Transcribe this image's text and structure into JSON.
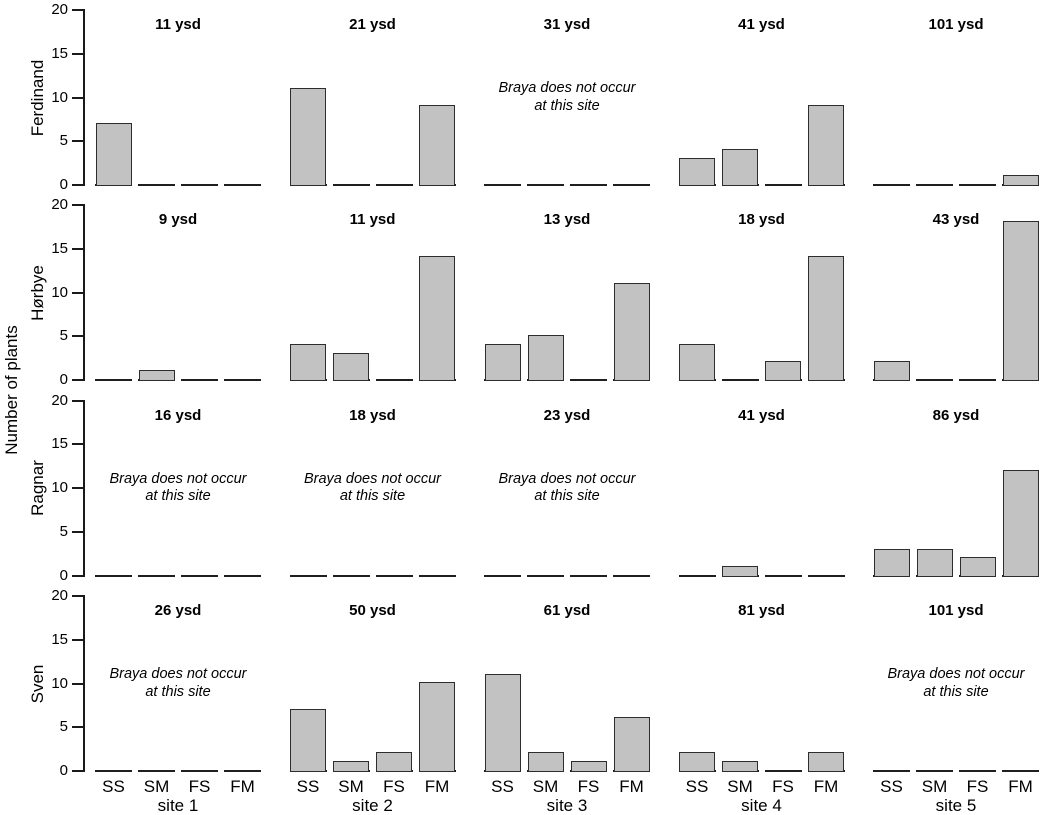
{
  "chart_data": {
    "type": "bar",
    "ylabel": "Number of plants",
    "ylim": [
      0,
      20
    ],
    "yticks": [
      0,
      5,
      10,
      15,
      20
    ],
    "categories": [
      "SS",
      "SM",
      "FS",
      "FM"
    ],
    "site_labels": [
      "site 1",
      "site 2",
      "site 3",
      "site 4",
      "site 5"
    ],
    "absent_note_lines": [
      "Braya does not occur",
      "at this site"
    ],
    "bar_fill": "#c2c2c2",
    "bar_stroke": "#2d2d2d",
    "rows": [
      {
        "label": "Ferdinand",
        "panels": [
          {
            "age_label": "11 ysd",
            "absent": false,
            "values": [
              7,
              0,
              0,
              0
            ]
          },
          {
            "age_label": "21 ysd",
            "absent": false,
            "values": [
              11,
              0,
              0,
              9
            ]
          },
          {
            "age_label": "31 ysd",
            "absent": true,
            "values": [
              0,
              0,
              0,
              0
            ]
          },
          {
            "age_label": "41 ysd",
            "absent": false,
            "values": [
              3,
              4,
              0,
              9
            ]
          },
          {
            "age_label": "101 ysd",
            "absent": false,
            "values": [
              0,
              0,
              0,
              1
            ]
          }
        ]
      },
      {
        "label": "Hørbye",
        "panels": [
          {
            "age_label": "9 ysd",
            "absent": false,
            "values": [
              0,
              1,
              0,
              0
            ]
          },
          {
            "age_label": "11 ysd",
            "absent": false,
            "values": [
              4,
              3,
              0,
              14
            ]
          },
          {
            "age_label": "13 ysd",
            "absent": false,
            "values": [
              4,
              5,
              0,
              11
            ]
          },
          {
            "age_label": "18 ysd",
            "absent": false,
            "values": [
              4,
              0,
              2,
              14
            ]
          },
          {
            "age_label": "43 ysd",
            "absent": false,
            "values": [
              2,
              0,
              0,
              18
            ]
          }
        ]
      },
      {
        "label": "Ragnar",
        "panels": [
          {
            "age_label": "16 ysd",
            "absent": true,
            "values": [
              0,
              0,
              0,
              0
            ]
          },
          {
            "age_label": "18 ysd",
            "absent": true,
            "values": [
              0,
              0,
              0,
              0
            ]
          },
          {
            "age_label": "23 ysd",
            "absent": true,
            "values": [
              0,
              0,
              0,
              0
            ]
          },
          {
            "age_label": "41 ysd",
            "absent": false,
            "values": [
              0,
              1,
              0,
              0
            ]
          },
          {
            "age_label": "86 ysd",
            "absent": false,
            "values": [
              3,
              3,
              2,
              12
            ]
          }
        ]
      },
      {
        "label": "Sven",
        "panels": [
          {
            "age_label": "26 ysd",
            "absent": true,
            "values": [
              0,
              0,
              0,
              0
            ]
          },
          {
            "age_label": "50 ysd",
            "absent": false,
            "values": [
              7,
              1,
              2,
              10
            ]
          },
          {
            "age_label": "61 ysd",
            "absent": false,
            "values": [
              11,
              2,
              1,
              6
            ]
          },
          {
            "age_label": "81 ysd",
            "absent": false,
            "values": [
              2,
              1,
              0,
              2
            ]
          },
          {
            "age_label": "101 ysd",
            "absent": true,
            "values": [
              0,
              0,
              0,
              0
            ]
          }
        ]
      }
    ]
  }
}
